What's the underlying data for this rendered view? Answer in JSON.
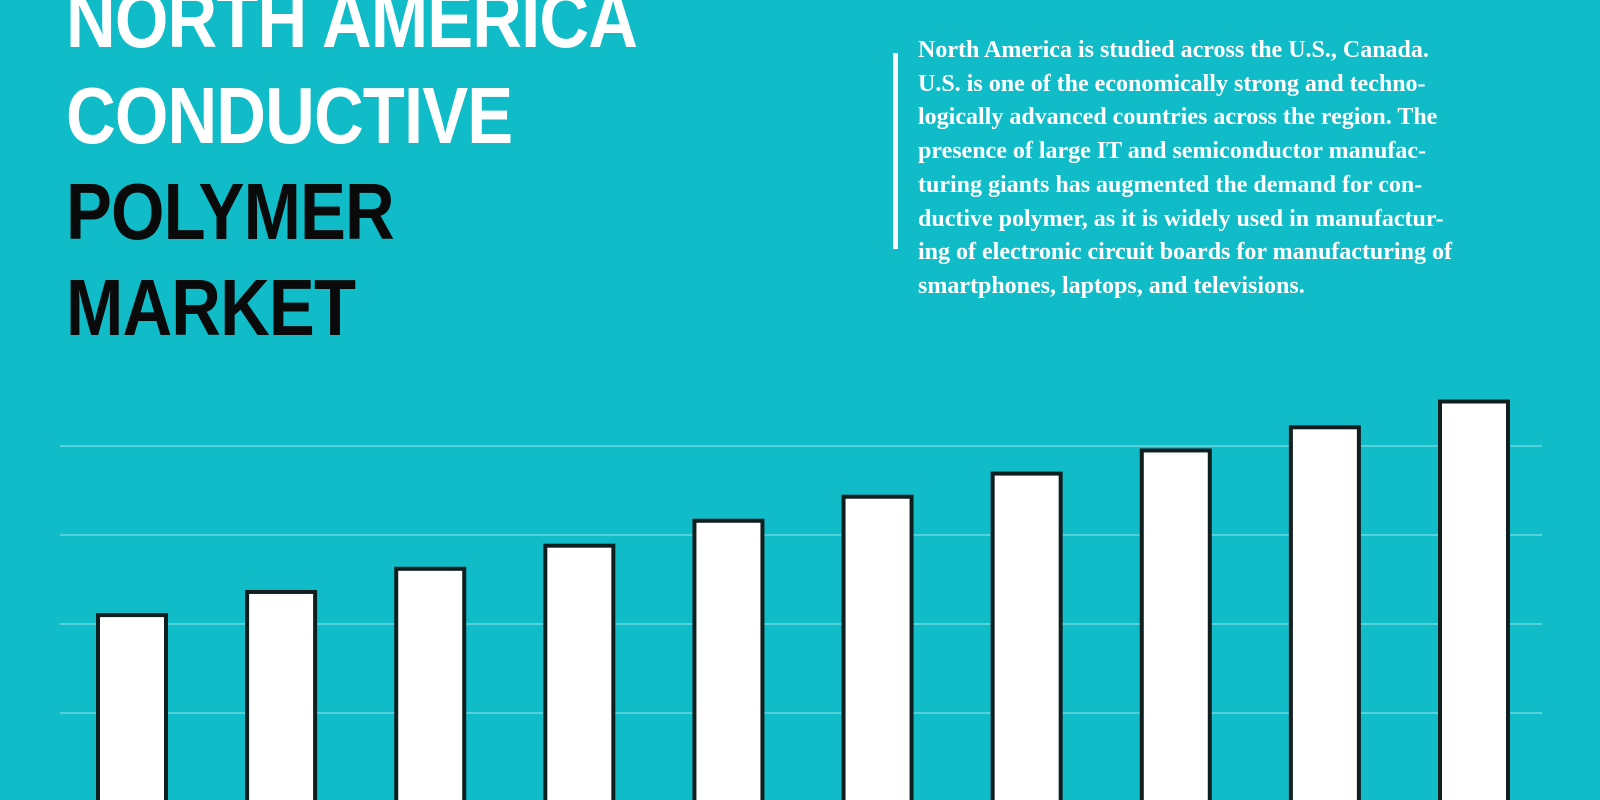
{
  "title": {
    "line1": "NORTH AMERICA",
    "line2": "CONDUCTIVE",
    "line3": "POLYMER",
    "line4": "MARKET"
  },
  "description": {
    "lines": [
      "North America is studied across the U.S., Canada.",
      "U.S. is one of the economically strong and techno-",
      "logically advanced countries across the region. The",
      "presence of large IT and semiconductor manufac-",
      "turing giants has augmented the demand for con-",
      "ductive polymer, as it is widely used in manufactur-",
      "ing of electronic circuit boards for manufacturing of",
      "smartphones, laptops, and televisions."
    ]
  },
  "colors": {
    "background": "#10bcc8",
    "bar_fill": "#ffffff",
    "bar_stroke": "#0f1f1f",
    "gridline": "#7fdde3",
    "title_white": "#ffffff",
    "title_black": "#0a0a0a"
  },
  "chart_data": {
    "type": "bar",
    "categories": [
      "",
      "",
      "",
      "",
      "",
      "",
      "",
      "",
      "",
      ""
    ],
    "values": [
      21,
      23.6,
      26.2,
      28.8,
      31.6,
      34.3,
      36.9,
      39.5,
      42.1,
      45
    ],
    "title": "",
    "xlabel": "",
    "ylabel": "",
    "ylim": [
      0,
      40
    ],
    "gridlines": [
      10,
      20,
      30,
      40
    ],
    "grid": true,
    "legend": "none"
  }
}
